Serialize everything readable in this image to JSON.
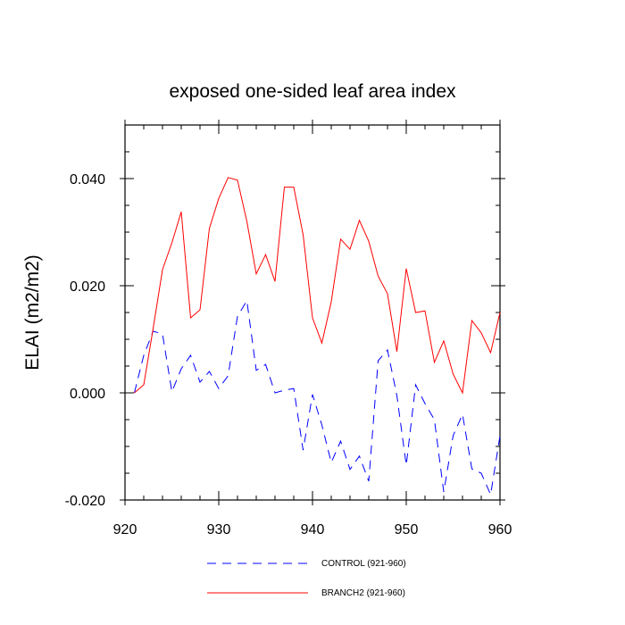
{
  "chart_data": {
    "type": "line",
    "title": "exposed one-sided leaf area index",
    "xlabel": "",
    "ylabel": "ELAI  (m2/m2)",
    "xlim": [
      920,
      960
    ],
    "ylim": [
      -0.02,
      0.05
    ],
    "x_ticks": [
      920,
      930,
      940,
      950,
      960
    ],
    "x_tick_labels": [
      "920",
      "930",
      "940",
      "950",
      "960"
    ],
    "y_ticks": [
      -0.02,
      0.0,
      0.02,
      0.04
    ],
    "y_tick_labels": [
      "-0.020",
      "0.000",
      "0.020",
      "0.040"
    ],
    "x": [
      921,
      922,
      923,
      924,
      925,
      926,
      927,
      928,
      929,
      930,
      931,
      932,
      933,
      934,
      935,
      936,
      937,
      938,
      939,
      940,
      941,
      942,
      943,
      944,
      945,
      946,
      947,
      948,
      949,
      950,
      951,
      952,
      953,
      954,
      955,
      956,
      957,
      958,
      959,
      960
    ],
    "series": [
      {
        "name": "CONTROL",
        "legend_label": "CONTROL (921-960)",
        "color": "#0000ff",
        "dash": "dashed",
        "values": [
          0.0,
          0.007,
          0.0115,
          0.011,
          0.0002,
          0.0045,
          0.007,
          0.002,
          0.004,
          0.0008,
          0.0032,
          0.0143,
          0.0172,
          0.0042,
          0.0053,
          0.0,
          0.0005,
          0.0008,
          -0.0107,
          -0.0003,
          -0.006,
          -0.013,
          -0.009,
          -0.0143,
          -0.0118,
          -0.0165,
          0.006,
          0.008,
          -0.0005,
          -0.0135,
          0.0015,
          -0.002,
          -0.005,
          -0.0185,
          -0.008,
          -0.004,
          -0.0142,
          -0.015,
          -0.019,
          -0.008
        ]
      },
      {
        "name": "BRANCH2",
        "legend_label": "BRANCH2 (921-960)",
        "color": "#ff0000",
        "dash": "solid",
        "values": [
          0.0,
          0.0015,
          0.012,
          0.023,
          0.028,
          0.0338,
          0.014,
          0.0155,
          0.0307,
          0.0363,
          0.0402,
          0.0397,
          0.032,
          0.0222,
          0.0258,
          0.0208,
          0.0384,
          0.0384,
          0.0295,
          0.014,
          0.0093,
          0.017,
          0.0287,
          0.0268,
          0.0322,
          0.0283,
          0.0218,
          0.0185,
          0.0077,
          0.0232,
          0.015,
          0.0153,
          0.0057,
          0.0097,
          0.0035,
          0.0,
          0.0135,
          0.0112,
          0.0075,
          0.015
        ]
      }
    ],
    "legend_position": "bottom-center"
  }
}
